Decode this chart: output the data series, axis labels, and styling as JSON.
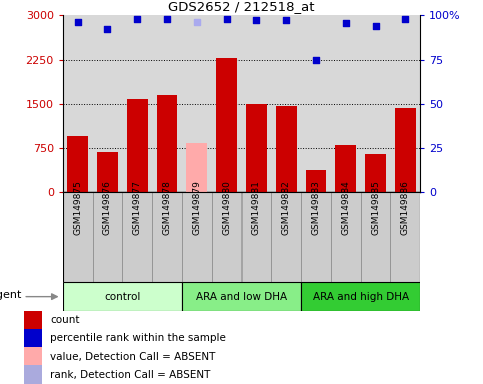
{
  "title": "GDS2652 / 212518_at",
  "samples": [
    "GSM149875",
    "GSM149876",
    "GSM149877",
    "GSM149878",
    "GSM149879",
    "GSM149880",
    "GSM149881",
    "GSM149882",
    "GSM149883",
    "GSM149884",
    "GSM149885",
    "GSM149886"
  ],
  "bar_values": [
    950,
    680,
    1580,
    1650,
    830,
    2270,
    1490,
    1460,
    380,
    800,
    650,
    1420
  ],
  "bar_colors": [
    "#cc0000",
    "#cc0000",
    "#cc0000",
    "#cc0000",
    "#ffaaaa",
    "#cc0000",
    "#cc0000",
    "#cc0000",
    "#cc0000",
    "#cc0000",
    "#cc0000",
    "#cc0000"
  ],
  "dot_values": [
    2880,
    2760,
    2930,
    2940,
    2890,
    2940,
    2920,
    2920,
    2250,
    2870,
    2820,
    2930
  ],
  "dot_colors": [
    "#0000cc",
    "#0000cc",
    "#0000cc",
    "#0000cc",
    "#aaaaee",
    "#0000cc",
    "#0000cc",
    "#0000cc",
    "#0000cc",
    "#0000cc",
    "#0000cc",
    "#0000cc"
  ],
  "ylim_left": [
    0,
    3000
  ],
  "ylim_right": [
    0,
    100
  ],
  "yticks_left": [
    0,
    750,
    1500,
    2250,
    3000
  ],
  "yticks_right": [
    0,
    25,
    50,
    75,
    100
  ],
  "ytick_labels_left": [
    "0",
    "750",
    "1500",
    "2250",
    "3000"
  ],
  "ytick_labels_right": [
    "0",
    "25",
    "50",
    "75",
    "100%"
  ],
  "groups": [
    {
      "label": "control",
      "start": 0,
      "end": 3,
      "color": "#ccffcc"
    },
    {
      "label": "ARA and low DHA",
      "start": 4,
      "end": 7,
      "color": "#88ee88"
    },
    {
      "label": "ARA and high DHA",
      "start": 8,
      "end": 11,
      "color": "#33cc33"
    }
  ],
  "agent_label": "agent",
  "left_tick_color": "#cc0000",
  "right_tick_color": "#0000cc",
  "bg_color": "#d8d8d8",
  "legend_items": [
    {
      "label": "count",
      "color": "#cc0000"
    },
    {
      "label": "percentile rank within the sample",
      "color": "#0000cc"
    },
    {
      "label": "value, Detection Call = ABSENT",
      "color": "#ffaaaa"
    },
    {
      "label": "rank, Detection Call = ABSENT",
      "color": "#aaaadd"
    }
  ],
  "bar_width": 0.7,
  "sample_box_color": "#cccccc",
  "sample_box_border": "#888888"
}
